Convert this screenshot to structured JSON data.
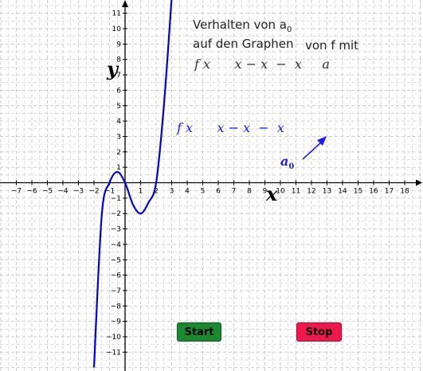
{
  "title": {
    "line1": "Verhalten von a",
    "line1_sub": "0",
    "line2": "auf den Graphen",
    "line2b": "von f mit"
  },
  "formula_general": "f x      x − x  −  x     a",
  "curve_label": "f x      x − x  −  x",
  "parameter_label": {
    "name": "a",
    "sub": "0"
  },
  "axes": {
    "x_label": "x",
    "y_label": "y"
  },
  "buttons": {
    "start": "Start",
    "stop": "Stop"
  },
  "colors": {
    "curve": "#0000dd",
    "grid": "#c8c8c8",
    "start": "#1a8a2e",
    "stop": "#f0174a"
  },
  "icons": {
    "direction_arrow": "arrow-icon"
  },
  "chart_data": {
    "type": "line",
    "xlim": [
      -7.6,
      18.6
    ],
    "ylim": [
      -11.8,
      11.8
    ],
    "x_ticks": [
      -7,
      -6,
      -5,
      -4,
      -3,
      -2,
      -1,
      1,
      2,
      3,
      4,
      5,
      6,
      7,
      8,
      9,
      10,
      11,
      12,
      13,
      14,
      15,
      16,
      17,
      18
    ],
    "y_ticks": [
      -11,
      -10,
      -9,
      -8,
      -7,
      -6,
      -5,
      -4,
      -3,
      -2,
      -1,
      1,
      2,
      3,
      4,
      5,
      6,
      7,
      8,
      9,
      10,
      11
    ],
    "grid": true,
    "series": [
      {
        "x": [
          -2,
          -1.5,
          -1,
          -0.5,
          0,
          0.5,
          1,
          1.5,
          2,
          2.5,
          3
        ],
        "y": [
          -12,
          -2.1,
          0.0,
          0.7,
          0.0,
          -1.4,
          -2.0,
          -1.3,
          0.0,
          5.0,
          12
        ]
      }
    ]
  }
}
